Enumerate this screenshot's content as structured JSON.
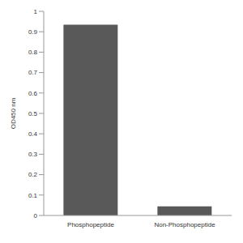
{
  "chart_data": {
    "type": "bar",
    "categories": [
      "Phosphopeptide",
      "Non-Phosphopeptide"
    ],
    "values": [
      0.935,
      0.045
    ],
    "color": "#595959",
    "y_label": "OD450 nm",
    "ylim": [
      0,
      1
    ],
    "yticks": [
      0,
      0.1,
      0.2,
      0.3,
      0.4,
      0.5,
      0.6,
      0.7,
      0.8,
      0.9,
      1
    ],
    "grid": false
  }
}
